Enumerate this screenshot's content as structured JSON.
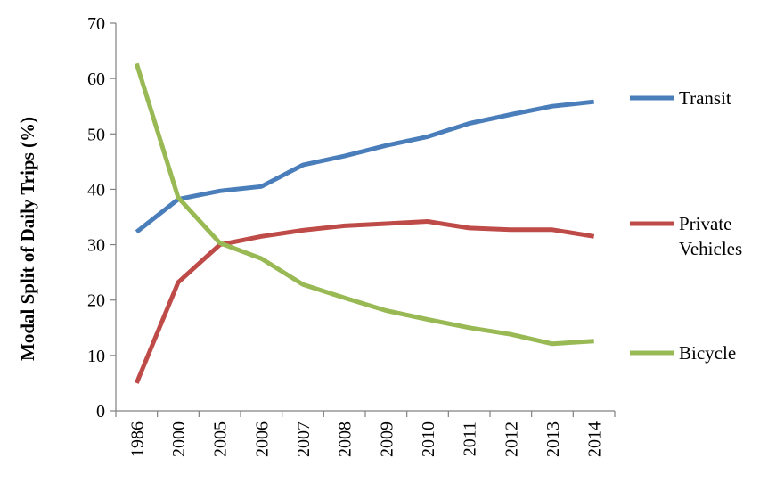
{
  "chart_data": {
    "type": "line",
    "title": "",
    "xlabel": "",
    "ylabel": "Modal Split of Daily Trips (%)",
    "categories": [
      "1986",
      "2000",
      "2005",
      "2006",
      "2007",
      "2008",
      "2009",
      "2010",
      "2011",
      "2012",
      "2013",
      "2014"
    ],
    "ylim": [
      0,
      70
    ],
    "yticks": [
      0,
      10,
      20,
      30,
      40,
      50,
      60,
      70
    ],
    "grid": false,
    "legend_placement": "right",
    "series": [
      {
        "name": "Transit",
        "color": "#4a7ebb",
        "values": [
          32.3,
          38.2,
          39.7,
          40.5,
          44.4,
          46.0,
          47.9,
          49.5,
          51.9,
          53.5,
          55.0,
          55.8
        ]
      },
      {
        "name": "Private Vehicles",
        "color": "#be4b48",
        "values": [
          5.0,
          23.2,
          30.0,
          31.5,
          32.6,
          33.4,
          33.8,
          34.2,
          33.0,
          32.7,
          32.7,
          31.5
        ]
      },
      {
        "name": "Bicycle",
        "color": "#98b954",
        "values": [
          62.7,
          38.5,
          30.3,
          27.5,
          22.8,
          20.4,
          18.1,
          16.5,
          15.0,
          13.8,
          12.1,
          12.6
        ]
      }
    ]
  }
}
